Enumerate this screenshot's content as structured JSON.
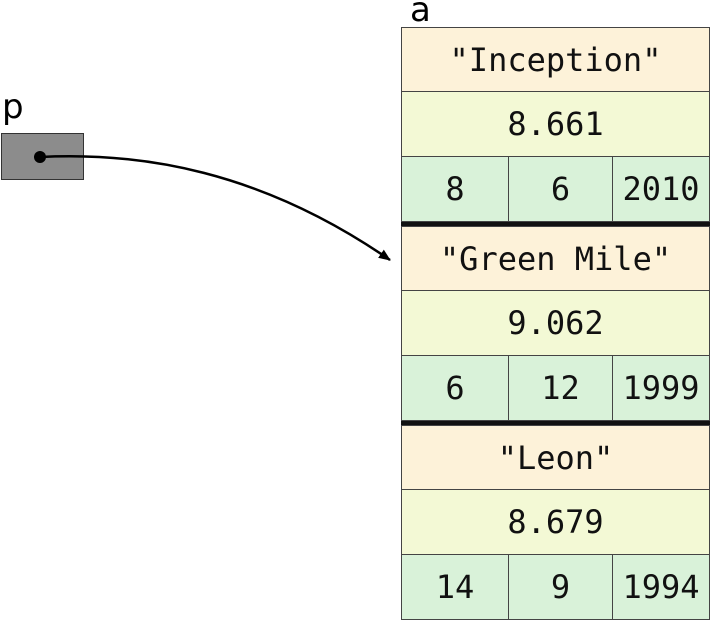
{
  "pointer": {
    "name": "p"
  },
  "array": {
    "name": "a",
    "records": [
      {
        "title": "\"Inception\"",
        "rating": "8.661",
        "day": "8",
        "month": "6",
        "year": "2010"
      },
      {
        "title": "\"Green Mile\"",
        "rating": "9.062",
        "day": "6",
        "month": "12",
        "year": "1999"
      },
      {
        "title": "\"Leon\"",
        "rating": "8.679",
        "day": "14",
        "month": "9",
        "year": "1994"
      }
    ]
  },
  "colors": {
    "pointer_fill": "#8c8c8c",
    "title_fill": "#fdf2d9",
    "rating_fill": "#f3f9d5",
    "date_fill": "#d9f2d9",
    "separator": "#111111"
  }
}
